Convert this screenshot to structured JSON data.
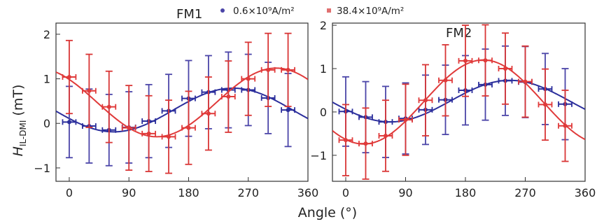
{
  "figure": {
    "xlabel": "Angle (°)",
    "ylabel_main": "H",
    "ylabel_sub": "IL-DMI",
    "ylabel_unit": " (mT)"
  },
  "legend": {
    "items": [
      {
        "label": "0.6×10⁹A/m²",
        "color": "#4b45a8",
        "marker": "circle"
      },
      {
        "label": "38.4×10⁹A/m²",
        "color": "#e07070",
        "marker": "square"
      }
    ]
  },
  "colors": {
    "series_low": "#2b2e9c",
    "series_low_error": "#4b45a8",
    "series_high": "#e03a3a",
    "series_high_error": "#d93636",
    "errorbar_high_dark": "#b52630"
  },
  "chart_data": [
    {
      "type": "scatter",
      "title": "FM1",
      "xlim": [
        -20,
        360
      ],
      "ylim": [
        -1.3,
        2.25
      ],
      "xticks": [
        0,
        90,
        180,
        270,
        360
      ],
      "yticks": [
        -1,
        0,
        1,
        2
      ],
      "grid": false,
      "series": [
        {
          "name": "0.6×10⁹A/m²",
          "x": [
            0,
            30,
            60,
            90,
            120,
            150,
            180,
            210,
            240,
            270,
            300,
            330
          ],
          "y": [
            0.03,
            -0.06,
            -0.15,
            -0.09,
            0.05,
            0.28,
            0.56,
            0.7,
            0.75,
            0.75,
            0.57,
            0.3
          ],
          "yerr": [
            0.8,
            0.83,
            0.8,
            0.8,
            0.82,
            0.82,
            0.85,
            0.82,
            0.85,
            0.8,
            0.8,
            0.82
          ],
          "xerr": 10,
          "fit": {
            "offset": 0.3,
            "amplitude": 0.49,
            "phase_deg": 247
          }
        },
        {
          "name": "38.4×10⁹A/m²",
          "x": [
            0,
            30,
            60,
            90,
            120,
            150,
            180,
            210,
            240,
            270,
            300,
            330
          ],
          "y": [
            1.04,
            0.73,
            0.37,
            -0.1,
            -0.23,
            -0.3,
            -0.1,
            0.22,
            0.6,
            1.0,
            1.2,
            1.2
          ],
          "yerr": [
            0.82,
            0.82,
            0.8,
            0.95,
            0.85,
            0.82,
            0.82,
            0.82,
            0.8,
            0.82,
            0.82,
            0.82
          ],
          "xerr": 10,
          "fit": {
            "offset": 0.47,
            "amplitude": 0.77,
            "phase_deg": 312
          }
        }
      ]
    },
    {
      "type": "scatter",
      "title": "FM2",
      "xlim": [
        -20,
        360
      ],
      "ylim": [
        -1.6,
        2.05
      ],
      "xticks": [
        0,
        90,
        180,
        270,
        360
      ],
      "yticks": [
        -1,
        0,
        1,
        2
      ],
      "grid": false,
      "series": [
        {
          "name": "0.6×10⁹A/m²",
          "x": [
            0,
            30,
            60,
            90,
            120,
            150,
            180,
            210,
            240,
            270,
            300,
            330
          ],
          "y": [
            0.01,
            -0.12,
            -0.23,
            -0.15,
            0.05,
            0.28,
            0.5,
            0.63,
            0.72,
            0.69,
            0.53,
            0.18
          ],
          "yerr": [
            0.8,
            0.82,
            0.82,
            0.82,
            0.8,
            0.8,
            0.8,
            0.82,
            0.8,
            0.82,
            0.82,
            0.82
          ],
          "xerr": 10,
          "fit": {
            "offset": 0.25,
            "amplitude": 0.48,
            "phase_deg": 247
          }
        },
        {
          "name": "38.4×10⁹A/m²",
          "x": [
            0,
            30,
            60,
            90,
            120,
            150,
            180,
            210,
            240,
            270,
            300,
            330
          ],
          "y": [
            -0.65,
            -0.73,
            -0.55,
            -0.18,
            0.27,
            0.73,
            1.18,
            1.19,
            1.0,
            0.7,
            0.17,
            -0.32
          ],
          "yerr": [
            0.82,
            0.82,
            0.82,
            0.82,
            0.82,
            0.82,
            0.82,
            0.82,
            0.82,
            0.82,
            0.82,
            0.82
          ],
          "xerr": 10,
          "fit": {
            "offset": 0.23,
            "amplitude": 0.97,
            "phase_deg": 207
          }
        }
      ]
    }
  ]
}
